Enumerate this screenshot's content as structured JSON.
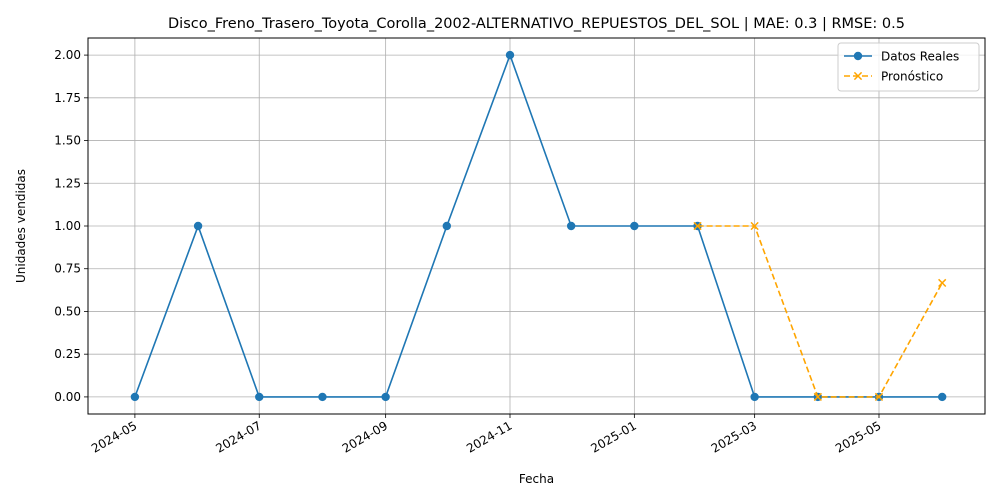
{
  "chart_data": {
    "type": "line",
    "title": "Disco_Freno_Trasero_Toyota_Corolla_2002-ALTERNATIVO_REPUESTOS_DEL_SOL | MAE: 0.3 | RMSE: 0.5",
    "xlabel": "Fecha",
    "ylabel": "Unidades vendidas",
    "xlim": [
      "2024-04-08",
      "2025-06-22"
    ],
    "ylim": [
      -0.1,
      2.1
    ],
    "grid": true,
    "legend_position": "top-right",
    "x_ticks": [
      "2024-05",
      "2024-07",
      "2024-09",
      "2024-11",
      "2025-01",
      "2025-03",
      "2025-05"
    ],
    "y_ticks": [
      "0.00",
      "0.25",
      "0.50",
      "0.75",
      "1.00",
      "1.25",
      "1.50",
      "1.75",
      "2.00"
    ],
    "series": [
      {
        "name": "Datos Reales",
        "color": "#1f77b4",
        "line_style": "solid",
        "marker": "circle",
        "x": [
          "2024-05-01",
          "2024-06-01",
          "2024-07-01",
          "2024-08-01",
          "2024-09-01",
          "2024-10-01",
          "2024-11-01",
          "2024-12-01",
          "2025-01-01",
          "2025-02-01",
          "2025-03-01",
          "2025-04-01",
          "2025-05-01",
          "2025-06-01"
        ],
        "values": [
          0,
          1,
          0,
          0,
          0,
          1,
          2,
          1,
          1,
          1,
          0,
          0,
          0,
          0
        ]
      },
      {
        "name": "Pronóstico",
        "color": "#ffa500",
        "line_style": "dashed",
        "marker": "x",
        "x": [
          "2025-02-01",
          "2025-03-01",
          "2025-04-01",
          "2025-05-01",
          "2025-06-01"
        ],
        "values": [
          1,
          1,
          0,
          0,
          0.667
        ]
      }
    ]
  }
}
